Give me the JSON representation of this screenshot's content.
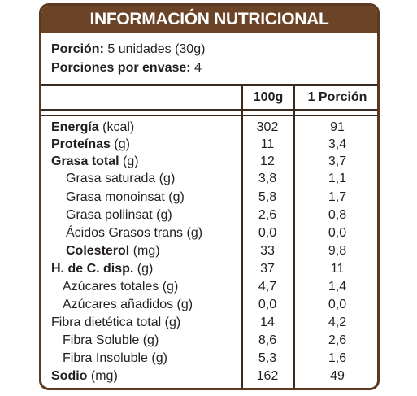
{
  "header": {
    "title": "INFORMACIÓN NUTRICIONAL"
  },
  "serving": {
    "portion_label": "Porción:",
    "portion_value": "5 unidades (30g)",
    "per_container_label": "Porciones por envase:",
    "per_container_value": "4"
  },
  "columns": {
    "per100": "100g",
    "per_portion": "1 Porción"
  },
  "rows": [
    {
      "bold_part": "Energía",
      "rest": " (kcal)",
      "per100": "302",
      "portion": "91"
    },
    {
      "bold_part": "Proteínas",
      "rest": " (g)",
      "per100": "11",
      "portion": "3,4"
    },
    {
      "bold_part": "Grasa total",
      "rest": " (g)",
      "per100": "12",
      "portion": "3,7"
    },
    {
      "bold_part": "",
      "rest": "Grasa saturada (g)",
      "per100": "3,8",
      "portion": "1,1"
    },
    {
      "bold_part": "",
      "rest": "Grasa monoinsat (g)",
      "per100": "5,8",
      "portion": "1,7"
    },
    {
      "bold_part": "",
      "rest": "Grasa poliinsat (g)",
      "per100": "2,6",
      "portion": "0,8"
    },
    {
      "bold_part": "",
      "rest": "Ácidos Grasos trans (g)",
      "per100": "0,0",
      "portion": "0,0"
    },
    {
      "bold_part": "Colesterol",
      "rest": " (mg)",
      "per100": "33",
      "portion": "9,8"
    },
    {
      "bold_part": "H. de C. disp.",
      "rest": " (g)",
      "per100": "37",
      "portion": "11"
    },
    {
      "bold_part": "",
      "rest": "Azúcares totales (g)",
      "per100": "4,7",
      "portion": "1,4"
    },
    {
      "bold_part": "",
      "rest": "Azúcares añadidos (g)",
      "per100": "0,0",
      "portion": "0,0"
    },
    {
      "bold_part": "",
      "rest": "Fibra dietética total (g)",
      "per100": "14",
      "portion": "4,2"
    },
    {
      "bold_part": "",
      "rest": "Fibra Soluble (g)",
      "per100": "8,6",
      "portion": "2,6"
    },
    {
      "bold_part": "",
      "rest": "Fibra Insoluble (g)",
      "per100": "5,3",
      "portion": "1,6"
    },
    {
      "bold_part": "Sodio",
      "rest": " (mg)",
      "per100": "162",
      "portion": "49"
    }
  ],
  "colors": {
    "header_bg": "#6b4428",
    "border": "#5b3a21"
  }
}
